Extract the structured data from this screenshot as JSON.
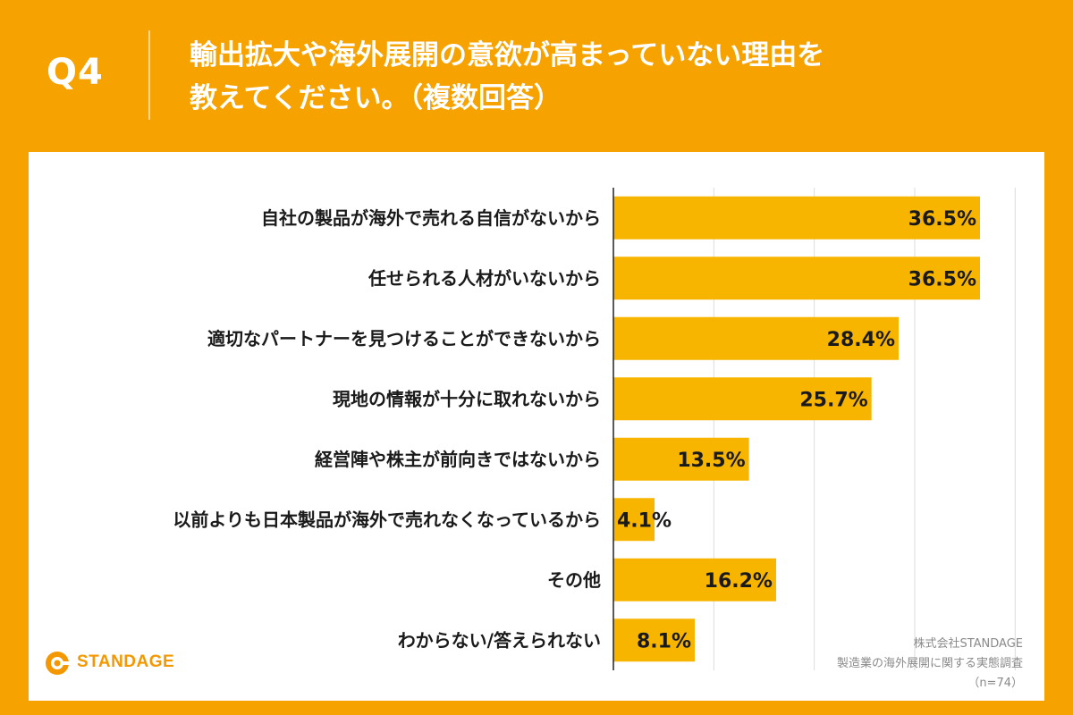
{
  "header": {
    "qnum": "Q4",
    "title_line1": "輸出拡大や海外展開の意欲が高まっていない理由を",
    "title_line2": "教えてください。（複数回答）"
  },
  "brand": {
    "logo_text": "STANDAGE",
    "accent": "#F6A200",
    "bar_color": "#F7B500"
  },
  "source": {
    "company": "株式会社STANDAGE",
    "survey": "製造業の海外展開に関する実態調査",
    "sample": "（n=74）"
  },
  "chart_data": {
    "type": "bar",
    "orientation": "horizontal",
    "categories": [
      "自社の製品が海外で売れる自信がないから",
      "任せられる人材がいないから",
      "適切なパートナーを見つけることができないから",
      "現地の情報が十分に取れないから",
      "経営陣や株主が前向きではないから",
      "以前よりも日本製品が海外で売れなくなっているから",
      "その他",
      "わからない/答えられない"
    ],
    "values": [
      36.5,
      36.5,
      28.4,
      25.7,
      13.5,
      4.1,
      16.2,
      8.1
    ],
    "value_labels": [
      "36.5%",
      "36.5%",
      "28.4%",
      "25.7%",
      "13.5%",
      "4.1%",
      "16.2%",
      "8.1%"
    ],
    "xlim": [
      0,
      40
    ],
    "grid": true,
    "title": "",
    "xlabel": "",
    "ylabel": ""
  }
}
